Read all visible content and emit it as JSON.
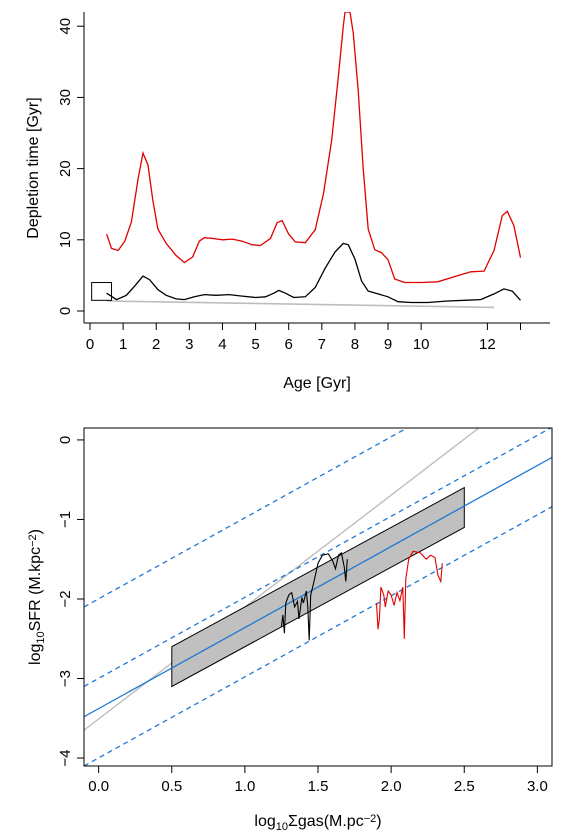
{
  "chart_data": [
    {
      "type": "line",
      "xlabel": "Age [Gyr]",
      "ylabel": "Depletion time [Gyr]",
      "xlim": [
        0,
        13.8
      ],
      "ylim": [
        0,
        42
      ],
      "x_ticks": [
        0,
        1,
        2,
        3,
        4,
        5,
        6,
        7,
        8,
        9,
        10,
        12
      ],
      "y_ticks": [
        0,
        10,
        20,
        30,
        40
      ],
      "colors": {
        "upper": "#e00000",
        "lower": "#000000",
        "reference": "#bdbdbd",
        "box": "#000000"
      },
      "series": [
        {
          "values": [
            [
              0.5,
              10.8
            ],
            [
              0.65,
              8.8
            ],
            [
              0.85,
              8.5
            ],
            [
              1.05,
              9.8
            ],
            [
              1.25,
              12.5
            ],
            [
              1.45,
              18.5
            ],
            [
              1.6,
              22.2
            ],
            [
              1.75,
              20.5
            ],
            [
              1.9,
              15.5
            ],
            [
              2.05,
              11.5
            ],
            [
              2.3,
              9.5
            ],
            [
              2.6,
              7.8
            ],
            [
              2.85,
              6.8
            ],
            [
              3.1,
              7.6
            ],
            [
              3.3,
              9.8
            ],
            [
              3.45,
              10.3
            ],
            [
              3.7,
              10.2
            ],
            [
              4.0,
              10.0
            ],
            [
              4.3,
              10.1
            ],
            [
              4.6,
              9.8
            ],
            [
              4.9,
              9.3
            ],
            [
              5.15,
              9.2
            ],
            [
              5.45,
              10.2
            ],
            [
              5.65,
              12.4
            ],
            [
              5.8,
              12.7
            ],
            [
              6.0,
              10.8
            ],
            [
              6.2,
              9.7
            ],
            [
              6.5,
              9.6
            ],
            [
              6.8,
              11.4
            ],
            [
              7.05,
              16.5
            ],
            [
              7.3,
              24.0
            ],
            [
              7.5,
              33.0
            ],
            [
              7.65,
              40.0
            ],
            [
              7.7,
              42.0
            ],
            [
              7.85,
              42.0
            ],
            [
              7.95,
              39.0
            ],
            [
              8.1,
              31.0
            ],
            [
              8.25,
              20.0
            ],
            [
              8.4,
              11.5
            ],
            [
              8.6,
              8.6
            ],
            [
              8.8,
              8.2
            ],
            [
              9.0,
              7.2
            ],
            [
              9.2,
              4.5
            ],
            [
              9.5,
              4.0
            ],
            [
              10.0,
              4.0
            ],
            [
              10.5,
              4.1
            ],
            [
              11.0,
              4.8
            ],
            [
              11.5,
              5.5
            ],
            [
              11.9,
              5.6
            ],
            [
              12.2,
              8.5
            ],
            [
              12.45,
              13.4
            ],
            [
              12.6,
              14.0
            ],
            [
              12.8,
              12.0
            ],
            [
              13.0,
              7.5
            ]
          ]
        },
        {
          "values": [
            [
              0.5,
              2.5
            ],
            [
              0.8,
              1.6
            ],
            [
              1.1,
              2.2
            ],
            [
              1.35,
              3.5
            ],
            [
              1.6,
              4.9
            ],
            [
              1.8,
              4.4
            ],
            [
              2.05,
              3.0
            ],
            [
              2.3,
              2.2
            ],
            [
              2.6,
              1.7
            ],
            [
              2.85,
              1.6
            ],
            [
              3.15,
              2.0
            ],
            [
              3.45,
              2.3
            ],
            [
              3.8,
              2.2
            ],
            [
              4.2,
              2.3
            ],
            [
              4.6,
              2.1
            ],
            [
              5.0,
              1.9
            ],
            [
              5.3,
              2.0
            ],
            [
              5.55,
              2.5
            ],
            [
              5.7,
              2.9
            ],
            [
              5.9,
              2.5
            ],
            [
              6.15,
              1.9
            ],
            [
              6.5,
              2.0
            ],
            [
              6.8,
              3.3
            ],
            [
              7.1,
              6.0
            ],
            [
              7.4,
              8.3
            ],
            [
              7.65,
              9.5
            ],
            [
              7.8,
              9.3
            ],
            [
              8.0,
              7.3
            ],
            [
              8.2,
              4.2
            ],
            [
              8.4,
              2.8
            ],
            [
              8.7,
              2.4
            ],
            [
              9.0,
              2.0
            ],
            [
              9.3,
              1.3
            ],
            [
              9.7,
              1.2
            ],
            [
              10.2,
              1.2
            ],
            [
              10.8,
              1.4
            ],
            [
              11.3,
              1.5
            ],
            [
              11.8,
              1.6
            ],
            [
              12.2,
              2.4
            ],
            [
              12.5,
              3.1
            ],
            [
              12.75,
              2.8
            ],
            [
              13.0,
              1.5
            ]
          ]
        },
        {
          "values": [
            [
              0.5,
              1.4
            ],
            [
              12.2,
              0.5
            ]
          ]
        }
      ],
      "box": {
        "x": [
          0.05,
          0.65
        ],
        "y": [
          1.5,
          4.0
        ]
      }
    },
    {
      "type": "line",
      "xlabel": "log10Σgas(M.pc−2)",
      "ylabel": "log10SFR (M.kpc−2)",
      "xlabel_parts": {
        "pre": "log",
        "sub": "10",
        "mid": "Σgas(M.pc",
        "sup": "−2",
        "post": ")"
      },
      "ylabel_parts": {
        "pre": "log",
        "sub": "10",
        "mid": "SFR (M.kpc",
        "sup": "−2",
        "post": ")"
      },
      "xlim": [
        -0.1,
        3.1
      ],
      "ylim": [
        -4.1,
        0.15
      ],
      "x_ticks": [
        0.0,
        0.5,
        1.0,
        1.5,
        2.0,
        2.5,
        3.0
      ],
      "x_tick_labels": [
        "0.0",
        "0.5",
        "1.0",
        "1.5",
        "2.0",
        "2.5",
        "3.0"
      ],
      "y_ticks": [
        0,
        -1,
        -2,
        -3,
        -4
      ],
      "y_tick_labels": [
        "0",
        "−1",
        "−2",
        "−3",
        "−4"
      ],
      "colors": {
        "fit": "#1f78d1",
        "bounds": "#1f78d1",
        "reference": "#bdbdbd",
        "band": "#c0c0c0",
        "black": "#000000",
        "red": "#e00000"
      },
      "fit_line": {
        "x": [
          -0.1,
          3.1
        ],
        "y": [
          -3.48,
          -0.22
        ]
      },
      "bound_lines": [
        {
          "x": [
            -0.1,
            3.1
          ],
          "y": [
            -2.1,
            1.16
          ]
        },
        {
          "x": [
            -0.1,
            3.1
          ],
          "y": [
            -3.1,
            0.16
          ]
        },
        {
          "x": [
            -0.1,
            3.1
          ],
          "y": [
            -4.1,
            -0.84
          ]
        }
      ],
      "reference_line": {
        "x": [
          -0.1,
          2.6
        ],
        "y": [
          -3.65,
          0.15
        ]
      },
      "band": {
        "x": [
          0.5,
          0.5,
          2.5,
          2.5
        ],
        "y": [
          -3.1,
          -2.6,
          -0.6,
          -1.1
        ]
      },
      "series": [
        {
          "values": [
            [
              1.25,
              -2.35
            ],
            [
              1.26,
              -2.2
            ],
            [
              1.27,
              -2.43
            ],
            [
              1.28,
              -2.05
            ],
            [
              1.3,
              -1.95
            ],
            [
              1.32,
              -1.92
            ],
            [
              1.34,
              -2.1
            ],
            [
              1.36,
              -2.03
            ],
            [
              1.37,
              -2.25
            ],
            [
              1.39,
              -1.98
            ],
            [
              1.4,
              -2.05
            ],
            [
              1.42,
              -1.9
            ],
            [
              1.43,
              -2.1
            ],
            [
              1.44,
              -2.52
            ],
            [
              1.45,
              -1.95
            ],
            [
              1.47,
              -1.8
            ],
            [
              1.5,
              -1.55
            ],
            [
              1.53,
              -1.45
            ],
            [
              1.57,
              -1.43
            ],
            [
              1.6,
              -1.52
            ],
            [
              1.62,
              -1.62
            ],
            [
              1.64,
              -1.45
            ],
            [
              1.66,
              -1.42
            ],
            [
              1.68,
              -1.6
            ],
            [
              1.69,
              -1.78
            ],
            [
              1.7,
              -1.5
            ]
          ]
        },
        {
          "values": [
            [
              1.9,
              -2.05
            ],
            [
              1.91,
              -2.38
            ],
            [
              1.92,
              -2.25
            ],
            [
              1.93,
              -1.85
            ],
            [
              1.95,
              -1.95
            ],
            [
              1.96,
              -2.1
            ],
            [
              1.98,
              -1.9
            ],
            [
              2.0,
              -1.95
            ],
            [
              2.02,
              -2.08
            ],
            [
              2.04,
              -1.92
            ],
            [
              2.06,
              -2.02
            ],
            [
              2.08,
              -1.85
            ],
            [
              2.09,
              -2.5
            ],
            [
              2.1,
              -1.75
            ],
            [
              2.12,
              -1.5
            ],
            [
              2.15,
              -1.4
            ],
            [
              2.2,
              -1.42
            ],
            [
              2.24,
              -1.5
            ],
            [
              2.27,
              -1.45
            ],
            [
              2.3,
              -1.48
            ],
            [
              2.32,
              -1.7
            ],
            [
              2.34,
              -1.78
            ],
            [
              2.35,
              -1.55
            ]
          ]
        }
      ]
    }
  ]
}
